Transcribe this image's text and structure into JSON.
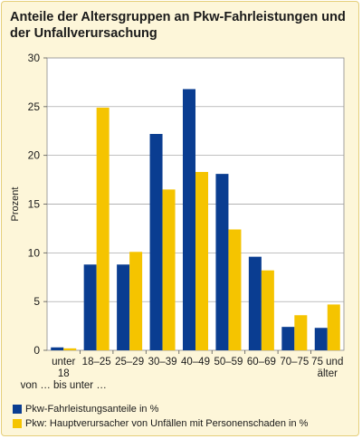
{
  "chart_data": {
    "type": "bar",
    "title": "Anteile der Altersgruppen an Pkw-Fahrleistungen und der Unfallverursachung",
    "ylabel": "Prozent",
    "xlabel": "",
    "ylim": [
      0,
      30
    ],
    "yticks": [
      "0",
      "5",
      "10",
      "15",
      "20",
      "25",
      "30"
    ],
    "grid": true,
    "legend_position": "bottom-left",
    "categories": [
      [
        "unter",
        "18",
        "von … bis unter …"
      ],
      [
        "18–25"
      ],
      [
        "25–29"
      ],
      [
        "30–39"
      ],
      [
        "40–49"
      ],
      [
        "50–59"
      ],
      [
        "60–69"
      ],
      [
        "70–75"
      ],
      [
        "75 und",
        "älter"
      ]
    ],
    "series": [
      {
        "name": "Pkw-Fahrleistungsanteile in %",
        "color": "#0a3d91",
        "values": [
          0.3,
          8.8,
          8.8,
          22.2,
          26.8,
          18.1,
          9.6,
          2.4,
          2.3
        ]
      },
      {
        "name": "Pkw: Hauptverursacher von Unfällen mit Personenschaden in %",
        "color": "#f5c400",
        "values": [
          0.2,
          24.9,
          10.1,
          16.5,
          18.3,
          12.4,
          8.2,
          3.6,
          4.7
        ]
      }
    ]
  }
}
